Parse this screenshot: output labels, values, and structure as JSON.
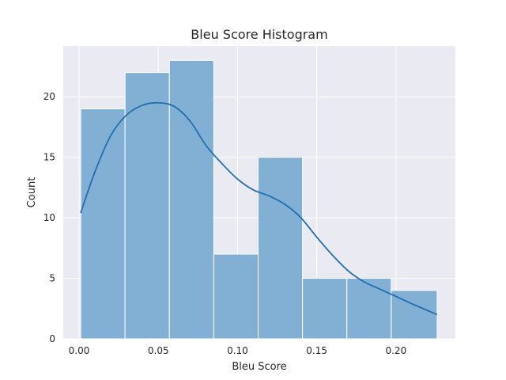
{
  "chart_data": {
    "type": "bar",
    "title": "Bleu Score Histogram",
    "xlabel": "Bleu Score",
    "ylabel": "Count",
    "xlim": [
      -0.01,
      0.2375
    ],
    "ylim": [
      0,
      24.2
    ],
    "x_ticks": [
      0.0,
      0.05,
      0.1,
      0.15,
      0.2
    ],
    "x_tick_labels": [
      "0.00",
      "0.05",
      "0.10",
      "0.15",
      "0.20"
    ],
    "y_ticks": [
      0,
      5,
      10,
      15,
      20
    ],
    "y_tick_labels": [
      "0",
      "5",
      "10",
      "15",
      "20"
    ],
    "grid": true,
    "bins": [
      {
        "x0": 0.001,
        "x1": 0.029,
        "count": 19
      },
      {
        "x0": 0.029,
        "x1": 0.057,
        "count": 22
      },
      {
        "x0": 0.057,
        "x1": 0.085,
        "count": 23
      },
      {
        "x0": 0.085,
        "x1": 0.113,
        "count": 7
      },
      {
        "x0": 0.113,
        "x1": 0.141,
        "count": 15
      },
      {
        "x0": 0.141,
        "x1": 0.169,
        "count": 5
      },
      {
        "x0": 0.169,
        "x1": 0.197,
        "count": 5
      },
      {
        "x0": 0.197,
        "x1": 0.226,
        "count": 4
      }
    ],
    "kde": {
      "x": [
        0.001,
        0.01,
        0.02,
        0.03,
        0.04,
        0.05,
        0.06,
        0.07,
        0.08,
        0.09,
        0.1,
        0.11,
        0.12,
        0.13,
        0.14,
        0.15,
        0.16,
        0.17,
        0.18,
        0.19,
        0.2,
        0.21,
        0.226
      ],
      "y": [
        10.4,
        13.8,
        16.8,
        18.5,
        19.3,
        19.5,
        19.2,
        18.0,
        16.0,
        14.5,
        13.2,
        12.3,
        11.8,
        11.1,
        10.0,
        8.4,
        6.9,
        5.6,
        4.7,
        4.1,
        3.5,
        2.9,
        2.0
      ]
    },
    "colors": {
      "bar_fill": "#82b0d5",
      "bar_edge": "#ffffff",
      "kde_line": "#1f6fb0",
      "plot_bg": "#eaeaf2",
      "grid": "#ffffff"
    }
  }
}
